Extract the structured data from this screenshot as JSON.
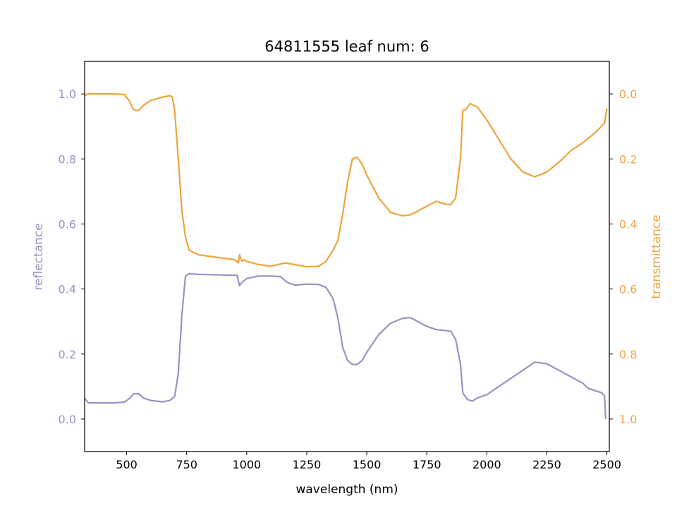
{
  "chart_data": {
    "type": "line",
    "title": "64811555 leaf num: 6",
    "xlabel": "wavelength (nm)",
    "ylabel_left": "reflectance",
    "ylabel_right": "transmittance",
    "xlim": [
      325,
      2510
    ],
    "ylim_left": [
      -0.1,
      1.1
    ],
    "ylim_right": [
      1.1,
      -0.1
    ],
    "right_axis_inverted": true,
    "grid": false,
    "x_ticks": [
      500,
      750,
      1000,
      1250,
      1500,
      1750,
      2000,
      2250,
      2500
    ],
    "y_ticks_left": [
      0.0,
      0.2,
      0.4,
      0.6,
      0.8,
      1.0
    ],
    "y_ticks_right": [
      0.0,
      0.2,
      0.4,
      0.6,
      0.8,
      1.0
    ],
    "colors": {
      "reflectance": "#9793c4",
      "transmittance": "#eea43f",
      "axes": "#000000"
    },
    "series": [
      {
        "name": "reflectance",
        "axis": "left",
        "x": [
          325,
          340,
          400,
          450,
          490,
          510,
          530,
          550,
          570,
          600,
          650,
          680,
          700,
          715,
          730,
          745,
          760,
          800,
          900,
          960,
          970,
          980,
          1000,
          1050,
          1100,
          1140,
          1170,
          1200,
          1250,
          1300,
          1330,
          1360,
          1380,
          1400,
          1420,
          1440,
          1460,
          1480,
          1500,
          1550,
          1600,
          1650,
          1680,
          1700,
          1750,
          1790,
          1830,
          1850,
          1870,
          1890,
          1900,
          1910,
          1920,
          1940,
          1960,
          2000,
          2050,
          2100,
          2150,
          2200,
          2250,
          2300,
          2350,
          2400,
          2420,
          2440,
          2460,
          2480,
          2490,
          2495
        ],
        "y": [
          0.065,
          0.05,
          0.05,
          0.05,
          0.052,
          0.062,
          0.078,
          0.078,
          0.065,
          0.057,
          0.053,
          0.057,
          0.07,
          0.14,
          0.32,
          0.44,
          0.447,
          0.445,
          0.443,
          0.442,
          0.41,
          0.42,
          0.432,
          0.44,
          0.44,
          0.438,
          0.42,
          0.412,
          0.415,
          0.414,
          0.405,
          0.37,
          0.31,
          0.22,
          0.18,
          0.168,
          0.168,
          0.18,
          0.205,
          0.26,
          0.295,
          0.31,
          0.312,
          0.305,
          0.285,
          0.275,
          0.272,
          0.27,
          0.245,
          0.17,
          0.08,
          0.07,
          0.06,
          0.055,
          0.065,
          0.075,
          0.1,
          0.125,
          0.15,
          0.175,
          0.17,
          0.15,
          0.13,
          0.11,
          0.095,
          0.09,
          0.085,
          0.08,
          0.07,
          0.0
        ]
      },
      {
        "name": "transmittance",
        "axis": "right",
        "x": [
          325,
          340,
          400,
          450,
          490,
          510,
          525,
          540,
          555,
          570,
          600,
          650,
          680,
          690,
          700,
          715,
          730,
          745,
          760,
          800,
          850,
          900,
          950,
          965,
          970,
          975,
          980,
          990,
          1000,
          1050,
          1100,
          1130,
          1160,
          1200,
          1250,
          1300,
          1330,
          1360,
          1380,
          1400,
          1420,
          1440,
          1460,
          1480,
          1500,
          1550,
          1600,
          1650,
          1680,
          1700,
          1750,
          1790,
          1830,
          1850,
          1870,
          1890,
          1900,
          1910,
          1930,
          1960,
          2000,
          2050,
          2100,
          2150,
          2200,
          2250,
          2300,
          2350,
          2400,
          2450,
          2490,
          2500
        ],
        "y": [
          0.005,
          0.0,
          0.0,
          0.0,
          0.002,
          0.02,
          0.045,
          0.052,
          0.048,
          0.035,
          0.02,
          0.01,
          0.005,
          0.01,
          0.05,
          0.2,
          0.36,
          0.44,
          0.48,
          0.495,
          0.5,
          0.505,
          0.51,
          0.52,
          0.495,
          0.505,
          0.515,
          0.51,
          0.515,
          0.525,
          0.53,
          0.525,
          0.52,
          0.525,
          0.532,
          0.53,
          0.515,
          0.48,
          0.45,
          0.37,
          0.27,
          0.2,
          0.195,
          0.215,
          0.25,
          0.32,
          0.365,
          0.375,
          0.372,
          0.365,
          0.345,
          0.33,
          0.34,
          0.34,
          0.32,
          0.2,
          0.05,
          0.05,
          0.03,
          0.04,
          0.08,
          0.14,
          0.2,
          0.24,
          0.255,
          0.24,
          0.21,
          0.175,
          0.15,
          0.12,
          0.09,
          0.045
        ]
      }
    ]
  }
}
